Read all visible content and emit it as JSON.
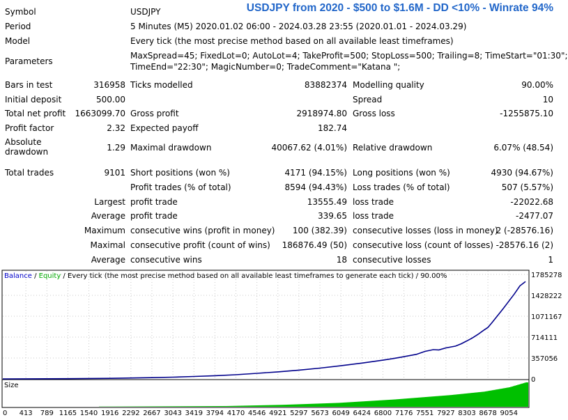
{
  "banner": {
    "ticker": "USDJPY",
    "text": " from 2020 - $500 to $1.6M - DD <10% - Winrate 94%"
  },
  "report": {
    "symbol_label": "Symbol",
    "symbol": "USDJPY",
    "period_label": "Period",
    "period": "5 Minutes (M5) 2020.01.02 06:00 - 2024.03.28 23:55 (2020.01.01 - 2024.03.29)",
    "model_label": "Model",
    "model": "Every tick (the most precise method based on all available least timeframes)",
    "parameters_label": "Parameters",
    "parameters_line1": "MaxSpread=45; FixedLot=0; AutoLot=4; TakeProfit=500; StopLoss=500; Trailing=8; TimeStart=\"01:30\";",
    "parameters_line2": "TimeEnd=\"22:30\"; MagicNumber=0; TradeComment=\"Katana \";",
    "bars_label": "Bars in test",
    "bars": "316958",
    "ticks_label": "Ticks modelled",
    "ticks": "83882374",
    "quality_label": "Modelling quality",
    "quality": "90.00%",
    "deposit_label": "Initial deposit",
    "deposit": "500.00",
    "spread_label": "Spread",
    "spread": "10",
    "net_label": "Total net profit",
    "net": "1663099.70",
    "gross_profit_label": "Gross profit",
    "gross_profit": "2918974.80",
    "gross_loss_label": "Gross loss",
    "gross_loss": "-1255875.10",
    "pf_label": "Profit factor",
    "pf": "2.32",
    "payoff_label": "Expected payoff",
    "payoff": "182.74",
    "abs_dd_label_1": "Absolute",
    "abs_dd_label_2": "drawdown",
    "abs_dd": "1.29",
    "max_dd_label": "Maximal drawdown",
    "max_dd": "40067.62 (4.01%)",
    "rel_dd_label": "Relative drawdown",
    "rel_dd": "6.07% (48.54)",
    "trades_label": "Total trades",
    "trades": "9101",
    "short_label": "Short positions (won %)",
    "short": "4171 (94.15%)",
    "long_label": "Long positions (won %)",
    "long": "4930 (94.67%)",
    "profit_trades_label": "Profit trades (% of total)",
    "profit_trades": "8594 (94.43%)",
    "loss_trades_label": "Loss trades (% of total)",
    "loss_trades": "507 (5.57%)",
    "largest_label": "Largest",
    "largest_profit_label": "profit trade",
    "largest_profit": "13555.49",
    "largest_loss_label": "loss trade",
    "largest_loss": "-22022.68",
    "average_label": "Average",
    "average_profit_label": "profit trade",
    "average_profit": "339.65",
    "average_loss_label": "loss trade",
    "average_loss": "-2477.07",
    "maximum_label": "Maximum",
    "max_cons_wins_label": "consecutive wins (profit in money)",
    "max_cons_wins": "100 (382.39)",
    "max_cons_losses_label": "consecutive losses (loss in money)",
    "max_cons_losses": "2 (-28576.16)",
    "maximal_label": "Maximal",
    "maximal_profit_label": "consecutive profit (count of wins)",
    "maximal_profit": "186876.49 (50)",
    "maximal_loss_label": "consecutive loss (count of losses)",
    "maximal_loss": "-28576.16 (2)",
    "avg_cons_label": "Average",
    "avg_cons_wins_label": "consecutive wins",
    "avg_cons_wins": "18",
    "avg_cons_losses_label": "consecutive losses",
    "avg_cons_losses": "1"
  },
  "chart_data": {
    "type": "line",
    "legend": {
      "balance": "Balance",
      "sep1": " / ",
      "equity": "Equity",
      "rest": " / Every tick (the most precise method based on all available least timeframes to generate each tick) / 90.00%"
    },
    "colors": {
      "balance": "#00008b",
      "equity": "#00a000",
      "size": "#00c000",
      "legend_balance": "#0000cc",
      "legend_equity": "#00aa00"
    },
    "xlabel": "",
    "ylabel": "",
    "size_label": "Size",
    "x_ticks": [
      0,
      413,
      789,
      1165,
      1540,
      1916,
      2292,
      2667,
      3043,
      3419,
      3794,
      4170,
      4546,
      4921,
      5297,
      5673,
      6049,
      6424,
      6800,
      7176,
      7551,
      7927,
      8303,
      8678,
      9054
    ],
    "y_ticks": [
      0,
      357056,
      714111,
      1071167,
      1428222,
      1785278
    ],
    "xlim": [
      0,
      9400
    ],
    "ylim": [
      0,
      1785278
    ],
    "series": [
      {
        "x": [
          0,
          413,
          789,
          1165,
          1540,
          1916,
          2292,
          2667,
          3043,
          3419,
          3794,
          4170,
          4546,
          4921,
          5297,
          5673,
          6049,
          6424,
          6800,
          7000,
          7176,
          7400,
          7551,
          7700,
          7800,
          7927,
          8100,
          8200,
          8303,
          8400,
          8500,
          8600,
          8678,
          8750,
          8850,
          8950,
          9054,
          9150,
          9250,
          9350
        ],
        "y": [
          500,
          1000,
          2000,
          4000,
          7000,
          10000,
          15000,
          22000,
          30000,
          42000,
          55000,
          72000,
          95000,
          120000,
          150000,
          185000,
          225000,
          270000,
          320000,
          350000,
          380000,
          420000,
          470000,
          500000,
          495000,
          530000,
          560000,
          600000,
          650000,
          700000,
          760000,
          830000,
          880000,
          960000,
          1080000,
          1200000,
          1330000,
          1450000,
          1590000,
          1663600
        ]
      }
    ],
    "size_series": {
      "x": [
        0,
        2000,
        4000,
        5000,
        6000,
        7000,
        8000,
        8600,
        9054,
        9350
      ],
      "v": [
        0,
        0.01,
        0.03,
        0.08,
        0.16,
        0.3,
        0.48,
        0.62,
        0.8,
        1.0
      ]
    }
  }
}
